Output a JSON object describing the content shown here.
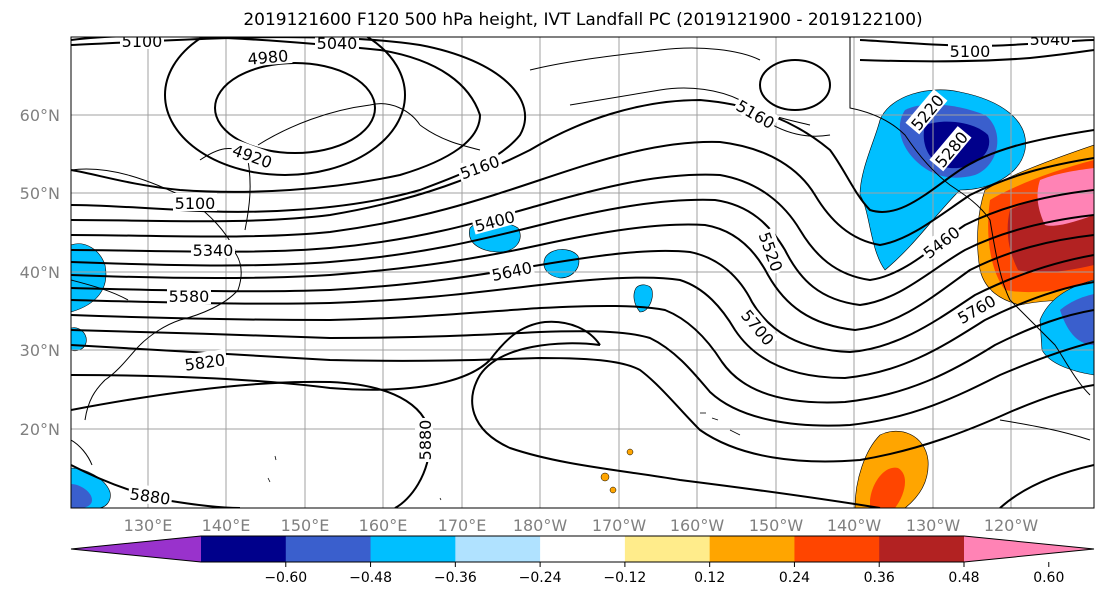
{
  "title": "2019121600 F120 500 hPa height, IVT Landfall PC (2019121900 - 2019122100)",
  "lat_ticks": [
    "60°N",
    "50°N",
    "40°N",
    "30°N",
    "20°N"
  ],
  "lon_ticks": [
    "130°E",
    "140°E",
    "150°E",
    "160°E",
    "170°E",
    "180°W",
    "170°W",
    "160°W",
    "150°W",
    "140°W",
    "130°W",
    "120°W"
  ],
  "colorbar": {
    "colors": [
      "#9932cc",
      "#00008b",
      "#3a5fcd",
      "#00bfff",
      "#b0e2ff",
      "#ffffff",
      "#ffec8b",
      "#ffa500",
      "#ff4500",
      "#b22222",
      "#ff83b5"
    ],
    "tick_labels": [
      "−0.60",
      "−0.48",
      "−0.36",
      "−0.24",
      "−0.12",
      "0.12",
      "0.24",
      "0.36",
      "0.48",
      "0.60"
    ]
  },
  "contour_labels": {
    "c5100a": "5100",
    "c5040a": "5040",
    "c4980": "4980",
    "c4920": "4920",
    "c5160a": "5160",
    "c5100b": "5100",
    "c5340": "5340",
    "c5580": "5580",
    "c5820": "5820",
    "c5880a": "5880",
    "c5880b": "5880",
    "c5400": "5400",
    "c5640": "5640",
    "c5160b": "5160",
    "c5100c": "5100",
    "c5040b": "5040",
    "c5220": "5220",
    "c5280": "5280",
    "c5520": "5520",
    "c5460": "5460",
    "c5700": "5700",
    "c5760": "5760"
  },
  "colors": {
    "axis_tick": "#808080",
    "contour": "#000000",
    "grid": "#a0a0a0"
  }
}
